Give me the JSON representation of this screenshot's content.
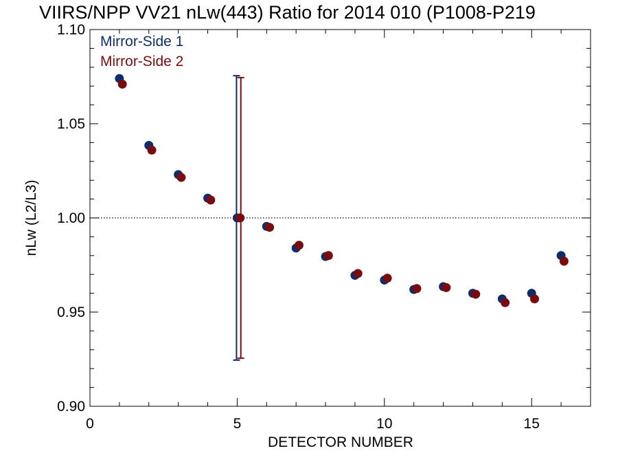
{
  "chart_data": {
    "type": "scatter",
    "title": "VIIRS/NPP VV21 nLw(443) Ratio for 2014 010 (P1008-P219",
    "xlabel": "DETECTOR NUMBER",
    "ylabel": "nLw (L2/L3)",
    "xlim": [
      0,
      17
    ],
    "ylim": [
      0.9,
      1.1
    ],
    "x_ticks": [
      0,
      5,
      10,
      15
    ],
    "x_tick_labels": [
      "0",
      "5",
      "10",
      "15"
    ],
    "y_ticks": [
      0.9,
      0.95,
      1.0,
      1.05,
      1.1
    ],
    "y_tick_labels": [
      "0.90",
      "0.95",
      "1.00",
      "1.05",
      "1.10"
    ],
    "reference_line": 1.0,
    "legend_position": "top-left",
    "series": [
      {
        "name": "Mirror-Side 1",
        "color": "#0d2d6b",
        "x": [
          1,
          2,
          3,
          4,
          5,
          6,
          7,
          8,
          9,
          10,
          11,
          12,
          13,
          14,
          15,
          16
        ],
        "y": [
          1.074,
          1.0385,
          1.023,
          1.0105,
          1.0,
          0.9955,
          0.984,
          0.9795,
          0.9695,
          0.967,
          0.962,
          0.9635,
          0.96,
          0.957,
          0.96,
          0.98
        ],
        "error_bar": {
          "x": 5,
          "low": 0.9245,
          "high": 1.0755
        }
      },
      {
        "name": "Mirror-Side 2",
        "color": "#7a0c10",
        "x": [
          1,
          2,
          3,
          4,
          5,
          6,
          7,
          8,
          9,
          10,
          11,
          12,
          13,
          14,
          15,
          16
        ],
        "y": [
          1.071,
          1.036,
          1.0215,
          1.0095,
          1.0,
          0.995,
          0.9855,
          0.98,
          0.9705,
          0.968,
          0.9625,
          0.963,
          0.9595,
          0.955,
          0.957,
          0.977
        ],
        "error_bar": {
          "x": 5,
          "low": 0.9255,
          "high": 1.0745
        }
      }
    ]
  }
}
